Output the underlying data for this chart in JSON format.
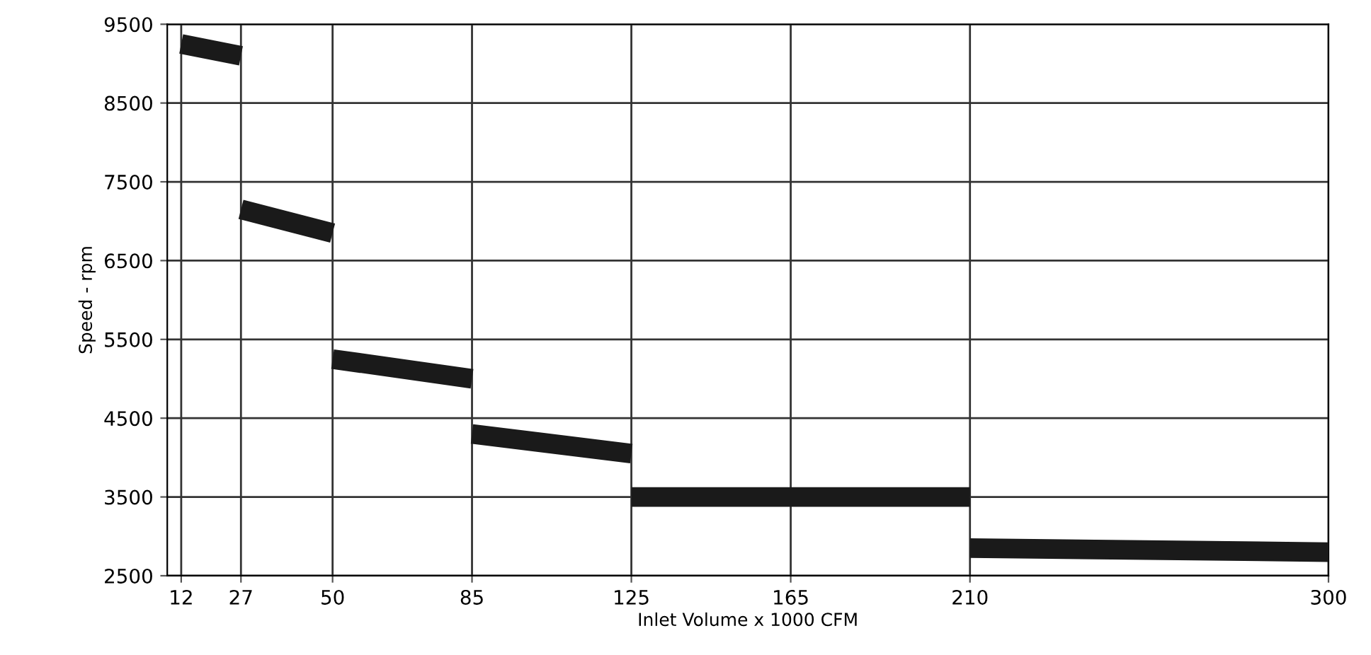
{
  "chart_data": {
    "type": "line",
    "xlabel": "Inlet Volume x 1000 CFM",
    "ylabel": "Speed - rpm",
    "xlim": [
      8.5,
      300
    ],
    "xticks": [
      12,
      27,
      50,
      85,
      125,
      165,
      210,
      300
    ],
    "ylim": [
      2500,
      9500
    ],
    "yticks": [
      2500,
      3500,
      4500,
      5500,
      6500,
      7500,
      8500,
      9500
    ],
    "grid": true,
    "marker": "none",
    "line_style": "solid",
    "series": [
      {
        "color": "#1a1a1a",
        "x": [
          12,
          27
        ],
        "values": [
          9250,
          9100
        ]
      },
      {
        "color": "#1a1a1a",
        "x": [
          27,
          50
        ],
        "values": [
          7150,
          6850
        ]
      },
      {
        "color": "#1a1a1a",
        "x": [
          50,
          85
        ],
        "values": [
          5250,
          5000
        ]
      },
      {
        "color": "#1a1a1a",
        "x": [
          85,
          125
        ],
        "values": [
          4300,
          4050
        ]
      },
      {
        "color": "#1a1a1a",
        "x": [
          125,
          210
        ],
        "values": [
          3500,
          3500
        ]
      },
      {
        "color": "#1a1a1a",
        "x": [
          210,
          300
        ],
        "values": [
          2850,
          2800
        ]
      }
    ]
  }
}
